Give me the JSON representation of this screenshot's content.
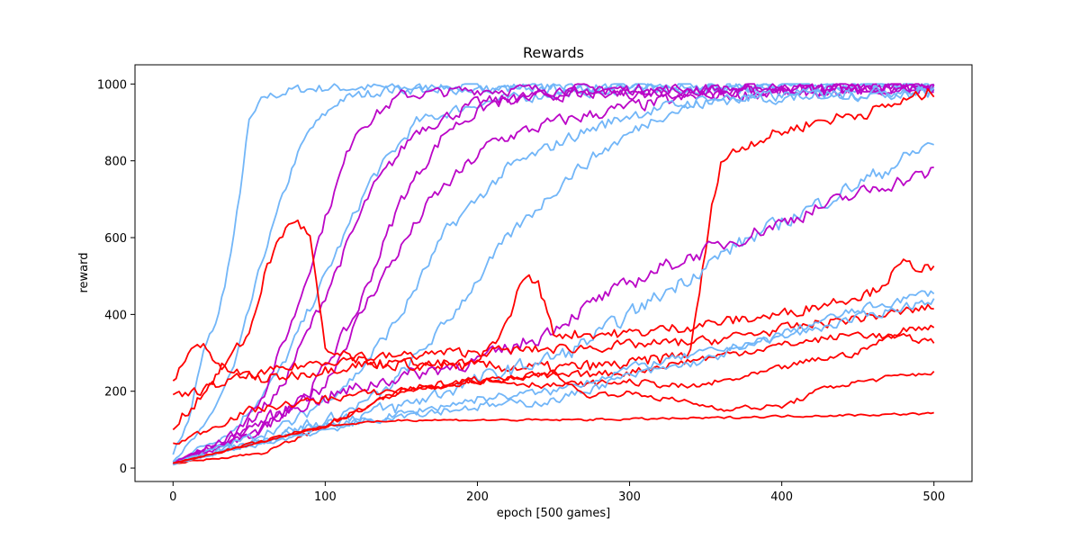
{
  "chart_data": {
    "type": "line",
    "title": "Rewards",
    "xlabel": "epoch [500 games]",
    "ylabel": "reward",
    "xlim": [
      -25,
      525
    ],
    "ylim": [
      -35,
      1050
    ],
    "xticks": [
      0,
      100,
      200,
      300,
      400,
      500
    ],
    "yticks": [
      0,
      200,
      400,
      600,
      800,
      1000
    ],
    "grid": false,
    "legend": "none",
    "noise_seed": 7,
    "colors": {
      "red": "#ff0000",
      "blue": "#72b6f8",
      "magenta": "#bb06c7"
    },
    "series": [
      {
        "color": "blue",
        "noise": 18,
        "points": [
          [
            0,
            40
          ],
          [
            10,
            120
          ],
          [
            20,
            300
          ],
          [
            30,
            400
          ],
          [
            40,
            600
          ],
          [
            50,
            900
          ],
          [
            60,
            965
          ],
          [
            80,
            985
          ],
          [
            100,
            990
          ],
          [
            500,
            995
          ]
        ]
      },
      {
        "color": "blue",
        "noise": 18,
        "points": [
          [
            0,
            20
          ],
          [
            20,
            100
          ],
          [
            40,
            260
          ],
          [
            60,
            560
          ],
          [
            80,
            800
          ],
          [
            90,
            880
          ],
          [
            110,
            960
          ],
          [
            140,
            985
          ],
          [
            500,
            995
          ]
        ]
      },
      {
        "color": "blue",
        "noise": 20,
        "points": [
          [
            0,
            15
          ],
          [
            40,
            100
          ],
          [
            70,
            250
          ],
          [
            100,
            500
          ],
          [
            130,
            750
          ],
          [
            160,
            900
          ],
          [
            200,
            950
          ],
          [
            250,
            975
          ],
          [
            300,
            985
          ],
          [
            500,
            995
          ]
        ]
      },
      {
        "color": "magenta",
        "noise": 20,
        "points": [
          [
            0,
            12
          ],
          [
            40,
            80
          ],
          [
            60,
            200
          ],
          [
            80,
            400
          ],
          [
            100,
            650
          ],
          [
            120,
            880
          ],
          [
            150,
            970
          ],
          [
            200,
            985
          ],
          [
            500,
            990
          ]
        ]
      },
      {
        "color": "magenta",
        "noise": 22,
        "points": [
          [
            0,
            12
          ],
          [
            40,
            80
          ],
          [
            70,
            200
          ],
          [
            100,
            450
          ],
          [
            130,
            720
          ],
          [
            160,
            880
          ],
          [
            200,
            950
          ],
          [
            250,
            975
          ],
          [
            500,
            990
          ]
        ]
      },
      {
        "color": "magenta",
        "noise": 22,
        "points": [
          [
            0,
            12
          ],
          [
            50,
            80
          ],
          [
            90,
            200
          ],
          [
            120,
            400
          ],
          [
            150,
            700
          ],
          [
            180,
            880
          ],
          [
            210,
            950
          ],
          [
            260,
            975
          ],
          [
            500,
            990
          ]
        ]
      },
      {
        "color": "magenta",
        "noise": 24,
        "points": [
          [
            0,
            12
          ],
          [
            60,
            100
          ],
          [
            100,
            220
          ],
          [
            130,
            450
          ],
          [
            170,
            700
          ],
          [
            210,
            850
          ],
          [
            250,
            900
          ],
          [
            300,
            940
          ],
          [
            350,
            970
          ],
          [
            500,
            990
          ]
        ]
      },
      {
        "color": "blue",
        "noise": 22,
        "points": [
          [
            0,
            12
          ],
          [
            80,
            120
          ],
          [
            120,
            240
          ],
          [
            150,
            400
          ],
          [
            180,
            620
          ],
          [
            220,
            780
          ],
          [
            260,
            860
          ],
          [
            300,
            920
          ],
          [
            350,
            960
          ],
          [
            500,
            985
          ]
        ]
      },
      {
        "color": "blue",
        "noise": 22,
        "points": [
          [
            0,
            12
          ],
          [
            100,
            120
          ],
          [
            140,
            200
          ],
          [
            180,
            380
          ],
          [
            220,
            600
          ],
          [
            260,
            760
          ],
          [
            280,
            820
          ],
          [
            320,
            920
          ],
          [
            360,
            960
          ],
          [
            500,
            980
          ]
        ]
      },
      {
        "color": "red",
        "noise": 22,
        "points": [
          [
            0,
            100
          ],
          [
            20,
            200
          ],
          [
            50,
            350
          ],
          [
            60,
            500
          ],
          [
            70,
            600
          ],
          [
            80,
            650
          ],
          [
            90,
            600
          ],
          [
            100,
            300
          ],
          [
            140,
            270
          ],
          [
            250,
            260
          ],
          [
            300,
            270
          ],
          [
            340,
            300
          ],
          [
            355,
            700
          ],
          [
            360,
            800
          ],
          [
            380,
            850
          ],
          [
            420,
            900
          ],
          [
            460,
            930
          ],
          [
            500,
            980
          ]
        ]
      },
      {
        "color": "blue",
        "noise": 28,
        "points": [
          [
            0,
            12
          ],
          [
            100,
            120
          ],
          [
            150,
            160
          ],
          [
            200,
            230
          ],
          [
            260,
            300
          ],
          [
            300,
            400
          ],
          [
            340,
            500
          ],
          [
            370,
            580
          ],
          [
            400,
            640
          ],
          [
            440,
            720
          ],
          [
            470,
            780
          ],
          [
            500,
            850
          ]
        ]
      },
      {
        "color": "magenta",
        "noise": 26,
        "points": [
          [
            0,
            12
          ],
          [
            80,
            160
          ],
          [
            140,
            230
          ],
          [
            200,
            280
          ],
          [
            240,
            340
          ],
          [
            280,
            440
          ],
          [
            320,
            520
          ],
          [
            360,
            580
          ],
          [
            400,
            640
          ],
          [
            440,
            700
          ],
          [
            470,
            740
          ],
          [
            500,
            770
          ]
        ]
      },
      {
        "color": "red",
        "noise": 20,
        "points": [
          [
            0,
            225
          ],
          [
            10,
            300
          ],
          [
            20,
            330
          ],
          [
            30,
            260
          ],
          [
            60,
            230
          ],
          [
            120,
            270
          ],
          [
            200,
            270
          ],
          [
            220,
            380
          ],
          [
            230,
            500
          ],
          [
            240,
            480
          ],
          [
            250,
            350
          ],
          [
            300,
            350
          ],
          [
            400,
            400
          ],
          [
            460,
            460
          ],
          [
            480,
            530
          ],
          [
            500,
            520
          ]
        ]
      },
      {
        "color": "red",
        "noise": 18,
        "points": [
          [
            0,
            180
          ],
          [
            40,
            230
          ],
          [
            100,
            280
          ],
          [
            180,
            300
          ],
          [
            250,
            310
          ],
          [
            350,
            330
          ],
          [
            430,
            380
          ],
          [
            470,
            400
          ],
          [
            500,
            420
          ]
        ]
      },
      {
        "color": "red",
        "noise": 14,
        "points": [
          [
            0,
            60
          ],
          [
            50,
            150
          ],
          [
            100,
            180
          ],
          [
            200,
            230
          ],
          [
            260,
            240
          ],
          [
            300,
            250
          ],
          [
            340,
            280
          ],
          [
            400,
            320
          ],
          [
            450,
            350
          ],
          [
            500,
            330
          ]
        ]
      },
      {
        "color": "red",
        "noise": 12,
        "points": [
          [
            0,
            12
          ],
          [
            60,
            40
          ],
          [
            100,
            110
          ],
          [
            150,
            200
          ],
          [
            200,
            230
          ],
          [
            250,
            215
          ],
          [
            300,
            225
          ],
          [
            340,
            210
          ],
          [
            380,
            240
          ],
          [
            420,
            280
          ],
          [
            450,
            300
          ],
          [
            480,
            360
          ],
          [
            500,
            370
          ]
        ]
      },
      {
        "color": "blue",
        "noise": 16,
        "points": [
          [
            0,
            12
          ],
          [
            100,
            110
          ],
          [
            150,
            140
          ],
          [
            200,
            160
          ],
          [
            250,
            175
          ],
          [
            300,
            240
          ],
          [
            350,
            280
          ],
          [
            400,
            350
          ],
          [
            440,
            400
          ],
          [
            500,
            460
          ]
        ]
      },
      {
        "color": "blue",
        "noise": 16,
        "points": [
          [
            0,
            12
          ],
          [
            100,
            100
          ],
          [
            150,
            140
          ],
          [
            200,
            180
          ],
          [
            250,
            200
          ],
          [
            300,
            260
          ],
          [
            350,
            300
          ],
          [
            400,
            340
          ],
          [
            440,
            380
          ],
          [
            500,
            440
          ]
        ]
      },
      {
        "color": "red",
        "noise": 10,
        "points": [
          [
            0,
            12
          ],
          [
            100,
            110
          ],
          [
            150,
            200
          ],
          [
            200,
            225
          ],
          [
            250,
            250
          ],
          [
            270,
            190
          ],
          [
            300,
            195
          ],
          [
            340,
            170
          ],
          [
            360,
            155
          ],
          [
            400,
            160
          ],
          [
            430,
            210
          ],
          [
            460,
            230
          ],
          [
            500,
            250
          ]
        ]
      },
      {
        "color": "red",
        "noise": 4,
        "points": [
          [
            0,
            12
          ],
          [
            50,
            60
          ],
          [
            100,
            110
          ],
          [
            150,
            125
          ],
          [
            250,
            125
          ],
          [
            350,
            130
          ],
          [
            400,
            135
          ],
          [
            450,
            138
          ],
          [
            500,
            142
          ]
        ]
      }
    ]
  }
}
